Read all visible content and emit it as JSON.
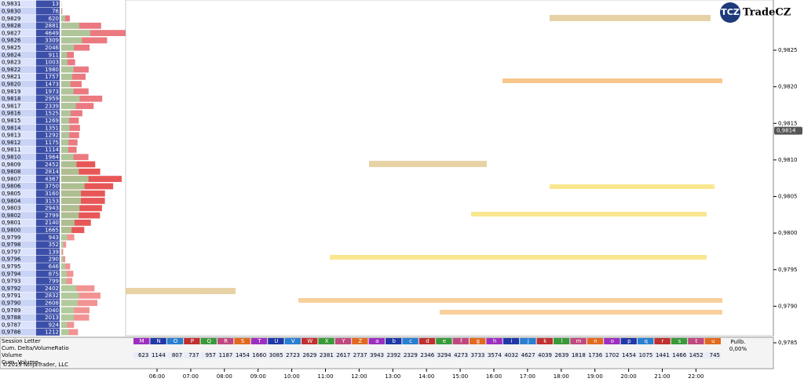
{
  "ladder": {
    "prices": [
      "0,9831",
      "0,9830",
      "0,9829",
      "0,9828",
      "0,9827",
      "0,9826",
      "0,9825",
      "0,9824",
      "0,9823",
      "0,9822",
      "0,9821",
      "0,9820",
      "0,9819",
      "0,9818",
      "0,9817",
      "0,9816",
      "0,9815",
      "0,9814",
      "0,9813",
      "0,9812",
      "0,9811",
      "0,9810",
      "0,9809",
      "0,9808",
      "0,9807",
      "0,9806",
      "0,9805",
      "0,9804",
      "0,9803",
      "0,9802",
      "0,9801",
      "0,9800",
      "0,9799",
      "0,9798",
      "0,9797",
      "0,9796",
      "0,9795",
      "0,9794",
      "0,9793",
      "0,9792",
      "0,9791",
      "0,9790",
      "0,9789",
      "0,9788",
      "0,9787",
      "0,9786"
    ],
    "volumes": [
      13,
      76,
      620,
      2881,
      4649,
      3309,
      2046,
      911,
      1003,
      1980,
      1757,
      1473,
      1973,
      2959,
      2339,
      1525,
      1269,
      1351,
      1292,
      1175,
      1114,
      1964,
      2452,
      2814,
      4367,
      3750,
      3160,
      3153,
      2943,
      2799,
      2140,
      1665,
      943,
      352,
      139,
      290,
      646,
      875,
      799,
      2402,
      2832,
      2608,
      2040,
      2013,
      924,
      1212
    ]
  },
  "price_axis": {
    "ticks": [
      {
        "value": 0.9825,
        "label": "0,9825"
      },
      {
        "value": 0.982,
        "label": "0,9820"
      },
      {
        "value": 0.9815,
        "label": "0,9815"
      },
      {
        "value": 0.981,
        "label": "0,9810"
      },
      {
        "value": 0.9805,
        "label": "0,9805"
      },
      {
        "value": 0.98,
        "label": "0,9800"
      },
      {
        "value": 0.9795,
        "label": "0,9795"
      },
      {
        "value": 0.979,
        "label": "0,9790"
      },
      {
        "value": 0.9785,
        "label": "0,9785"
      }
    ],
    "current": {
      "value": 0.9814,
      "label": "0,9814"
    }
  },
  "time_axis": [
    "06:00",
    "07:00",
    "08:00",
    "09:00",
    "10:00",
    "11:00",
    "12:00",
    "13:00",
    "14:00",
    "15:00",
    "16:00",
    "17:00",
    "18:00",
    "19:00",
    "20:00",
    "21:00",
    "22:00"
  ],
  "table": {
    "row_labels": [
      "Session Letter",
      "Cum. Delta/VolumeRatio",
      "Volume",
      "Cum. Volume"
    ],
    "session_letters": [
      "M",
      "N",
      "O",
      "P",
      "Q",
      "R",
      "S",
      "T",
      "U",
      "V",
      "W",
      "X",
      "Y",
      "Z",
      "a",
      "b",
      "c",
      "d",
      "e",
      "f",
      "g",
      "h",
      "i",
      "j",
      "k",
      "l",
      "m",
      "n",
      "o",
      "p",
      "q",
      "r",
      "s",
      "t",
      "u"
    ],
    "volume": [
      623,
      1144,
      807,
      737,
      957,
      1187,
      1454,
      1660,
      3085,
      2723,
      2629,
      2381,
      2617,
      2737,
      3943,
      2392,
      2329,
      2346,
      3294,
      4273,
      3733,
      3574,
      4032,
      4627,
      4039,
      2639,
      1818,
      1736,
      1702,
      1454,
      1075,
      1441,
      1466,
      1452,
      745
    ],
    "pullback_header": "Pullb.",
    "pullback_value": "0,00%"
  },
  "copyright": "©2019 NinjaTrader, LLC",
  "logo": {
    "badge": "TCZ",
    "name": "TradeCZ"
  }
}
